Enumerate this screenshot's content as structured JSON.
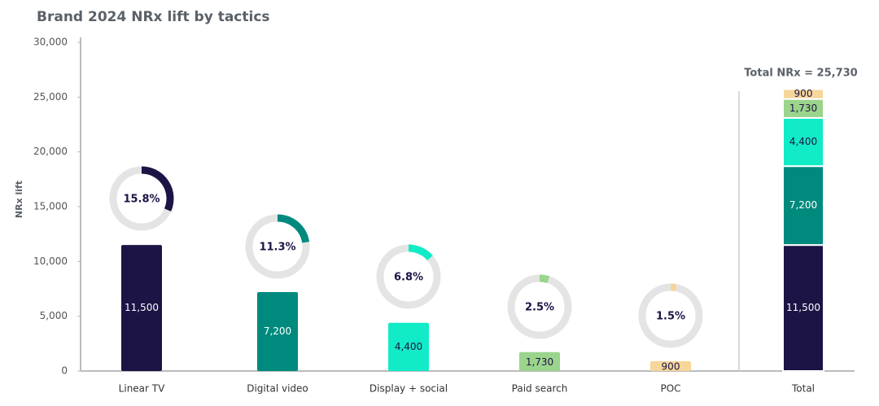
{
  "chart_data": {
    "type": "bar",
    "title": "Brand 2024 NRx lift by tactics",
    "y_label": "NRx lift",
    "categories": [
      "Linear TV",
      "Digital video",
      "Display + social",
      "Paid search",
      "POC"
    ],
    "values": [
      11500,
      7200,
      4400,
      1730,
      900
    ],
    "value_labels": [
      "11,500",
      "7,200",
      "4,400",
      "1,730",
      "900"
    ],
    "colors": [
      "#1c1445",
      "#008a7e",
      "#11ebc6",
      "#9bd48c",
      "#f6d69a"
    ],
    "shares": [
      15.8,
      11.3,
      6.8,
      2.5,
      1.5
    ],
    "share_labels": [
      "15.8%",
      "11.3%",
      "6.8%",
      "2.5%",
      "1.5%"
    ],
    "total": {
      "label": "Total",
      "annotation": "Total NRx = 25,730"
    },
    "ylim": [
      0,
      30000
    ],
    "yticks": [
      0,
      {
        "value": 5000,
        "label": "5,000"
      },
      {
        "value": 10000,
        "label": "10,000"
      },
      {
        "value": 15000,
        "label": "15,000"
      },
      {
        "value": 20000,
        "label": "20,000"
      },
      {
        "value": 25000,
        "label": "25,000"
      },
      {
        "value": 30000,
        "label": "30,000"
      }
    ]
  }
}
